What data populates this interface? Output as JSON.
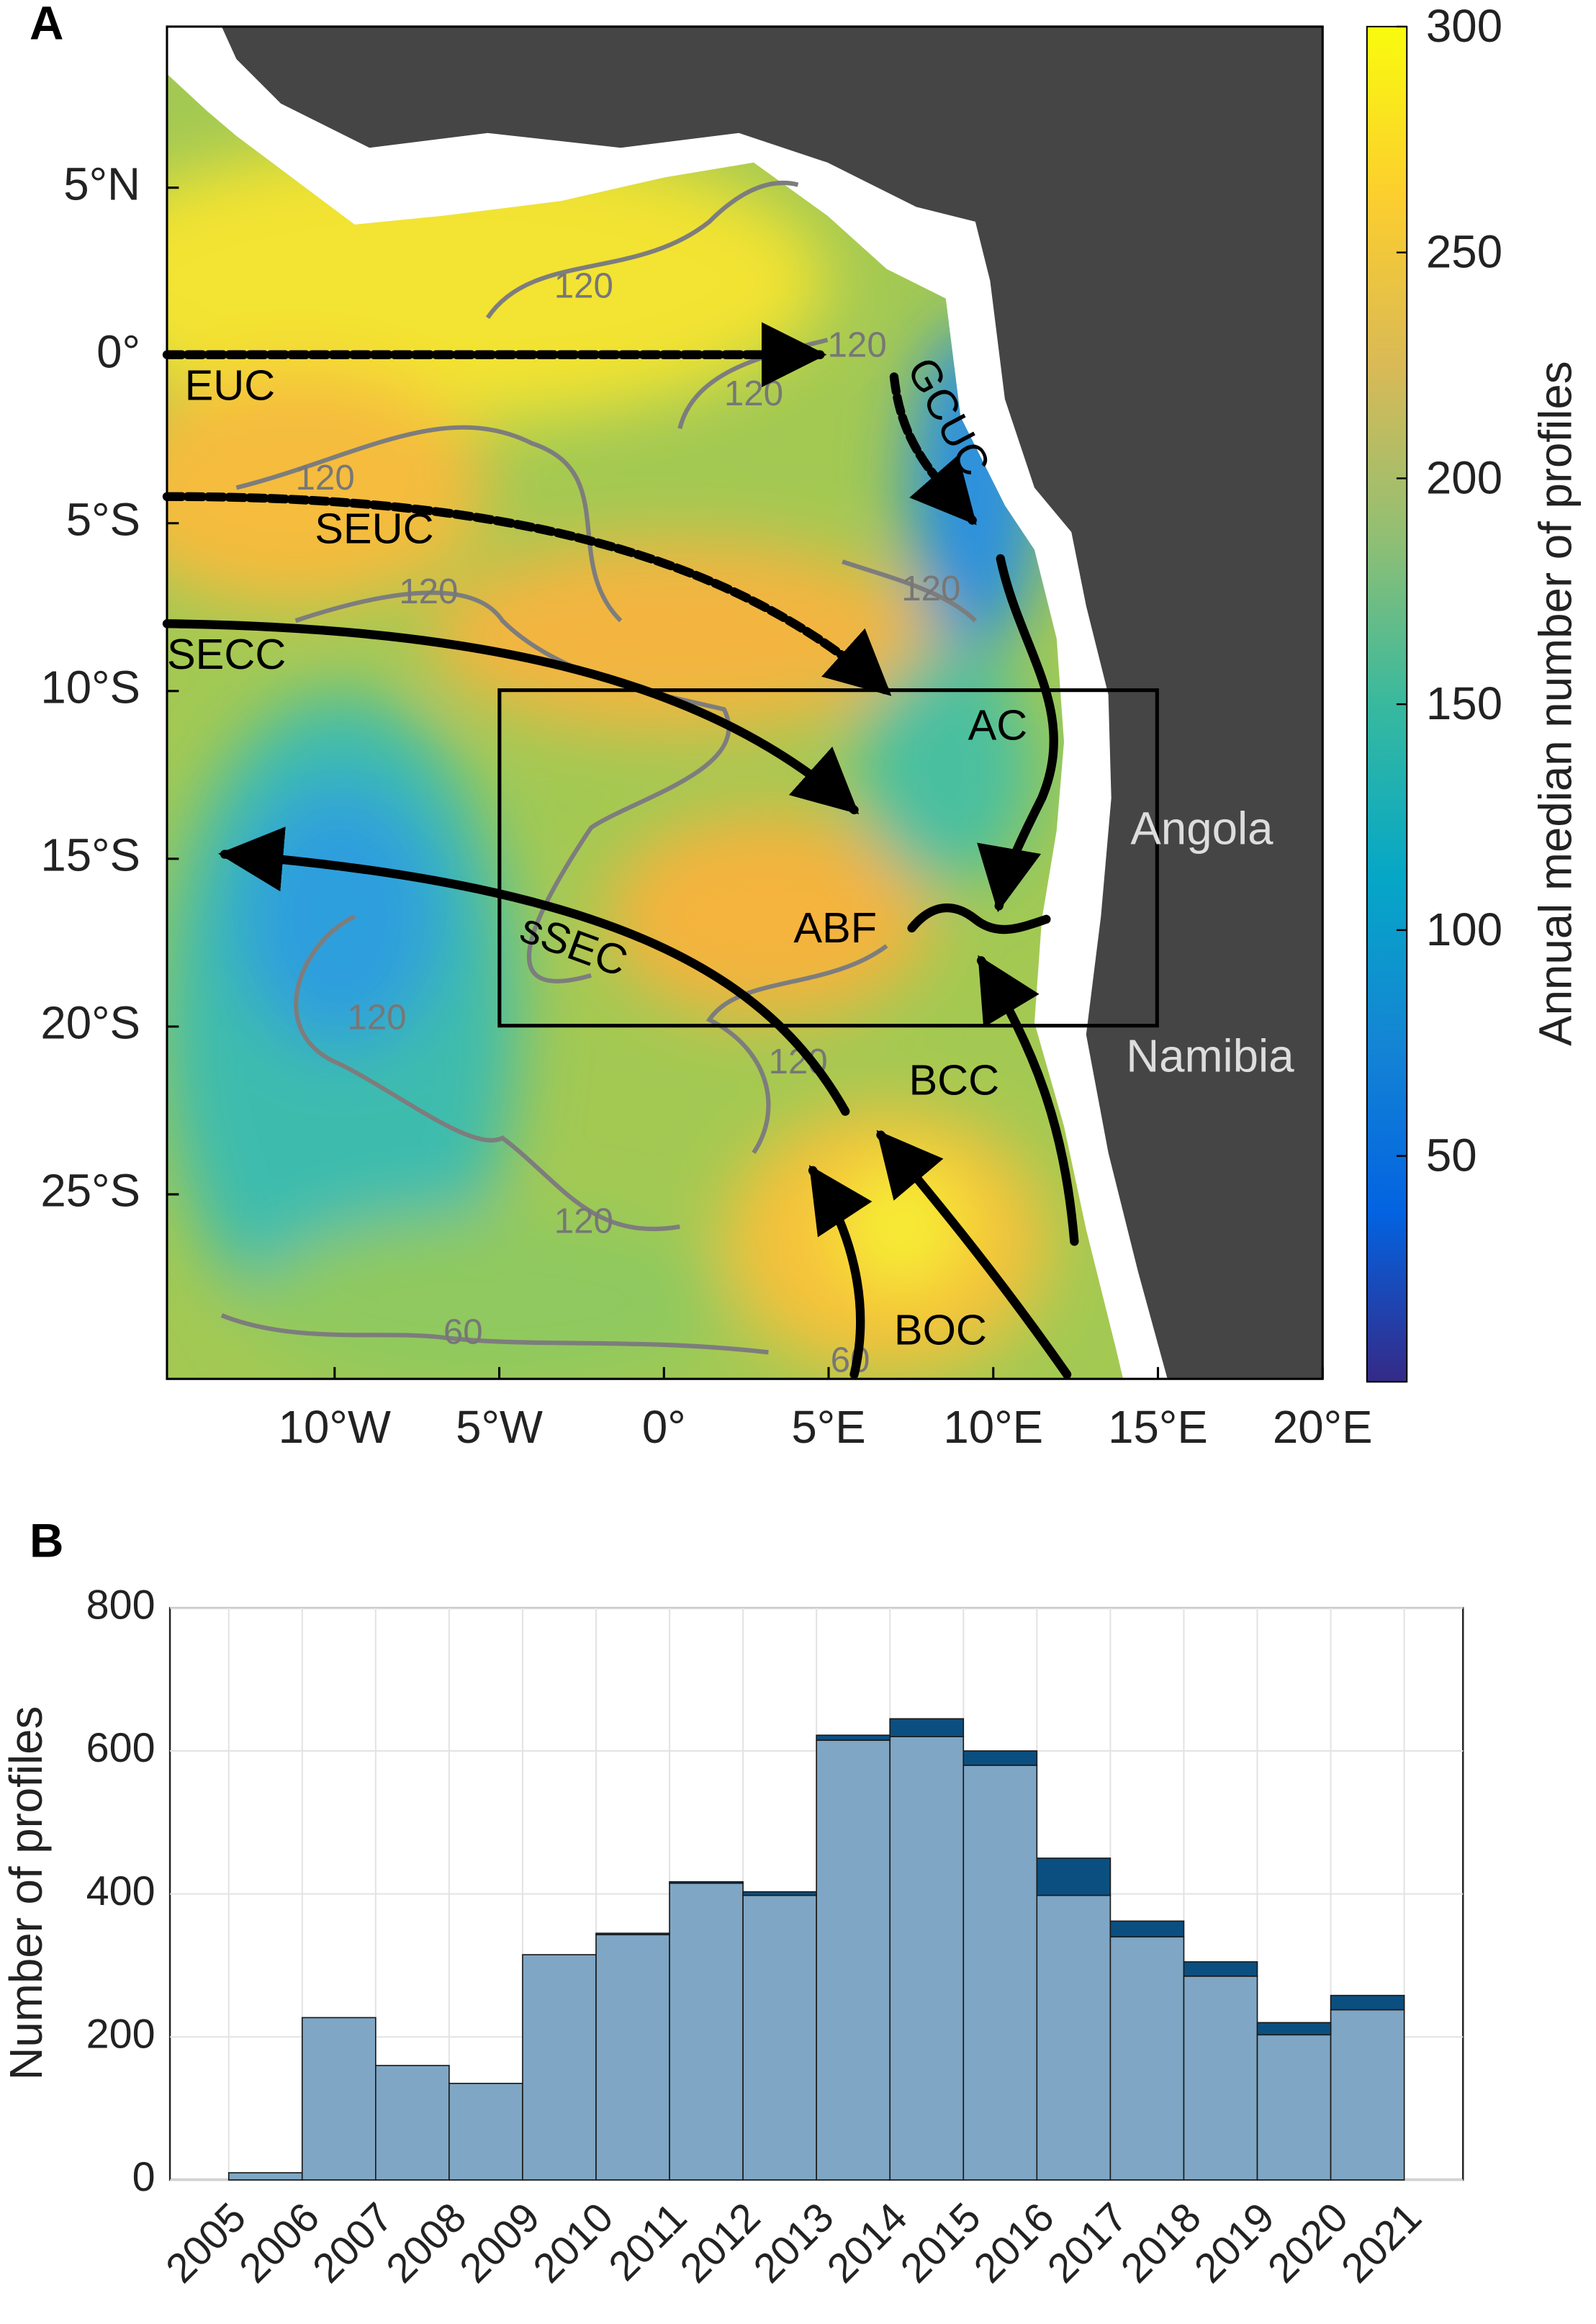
{
  "chart_data": [
    {
      "type": "map",
      "panel_label": "A",
      "xlim": [
        -15,
        20
      ],
      "xticks": [
        {
          "value": -10,
          "label": "10°W"
        },
        {
          "value": -5,
          "label": "5°W"
        },
        {
          "value": 0,
          "label": "0°"
        },
        {
          "value": 5,
          "label": "5°E"
        },
        {
          "value": 10,
          "label": "10°E"
        },
        {
          "value": 15,
          "label": "15°E"
        },
        {
          "value": 20,
          "label": "20°E"
        }
      ],
      "ylim": [
        -30.5,
        9.8
      ],
      "yticks": [
        {
          "value": 5,
          "label": "5°N"
        },
        {
          "value": 0,
          "label": "0°"
        },
        {
          "value": -5,
          "label": "5°S"
        },
        {
          "value": -10,
          "label": "10°S"
        },
        {
          "value": -15,
          "label": "15°S"
        },
        {
          "value": -20,
          "label": "20°S"
        },
        {
          "value": -25,
          "label": "25°S"
        }
      ],
      "colorbar": {
        "label": "Annual median number of profiles",
        "clim": [
          0,
          300
        ],
        "ticks": [
          50,
          100,
          150,
          200,
          250,
          300
        ]
      },
      "contour_levels": [
        60,
        120
      ],
      "currents": [
        "EUC",
        "SEUC",
        "SECC",
        "sSEC",
        "GCUC",
        "AC",
        "ABF",
        "BCC",
        "BOC"
      ],
      "places": [
        "Angola",
        "Namibia"
      ]
    },
    {
      "type": "histogram",
      "panel_label": "B",
      "ylabel": "Number of profiles",
      "bins": [
        2005,
        2006,
        2007,
        2008,
        2009,
        2010,
        2011,
        2012,
        2013,
        2014,
        2015,
        2016,
        2017,
        2018,
        2019,
        2020,
        2021
      ],
      "xticks": [
        2005,
        2006,
        2007,
        2008,
        2009,
        2010,
        2011,
        2012,
        2013,
        2014,
        2015,
        2016,
        2017,
        2018,
        2019,
        2020,
        2021
      ],
      "xlim": [
        2004.2,
        2021.8
      ],
      "ylim": [
        0,
        800
      ],
      "yticks": [
        0,
        200,
        400,
        600,
        800
      ],
      "grid": true,
      "series": [
        {
          "color": "#7fa6c4",
          "values": [
            10,
            227,
            160,
            135,
            315,
            343,
            415,
            398,
            615,
            620,
            580,
            398,
            340,
            285,
            203,
            238
          ]
        },
        {
          "color": "#0b4f80",
          "values": [
            0,
            0,
            0,
            0,
            0,
            2,
            2,
            5,
            7,
            25,
            20,
            52,
            22,
            20,
            17,
            20
          ]
        }
      ]
    }
  ]
}
